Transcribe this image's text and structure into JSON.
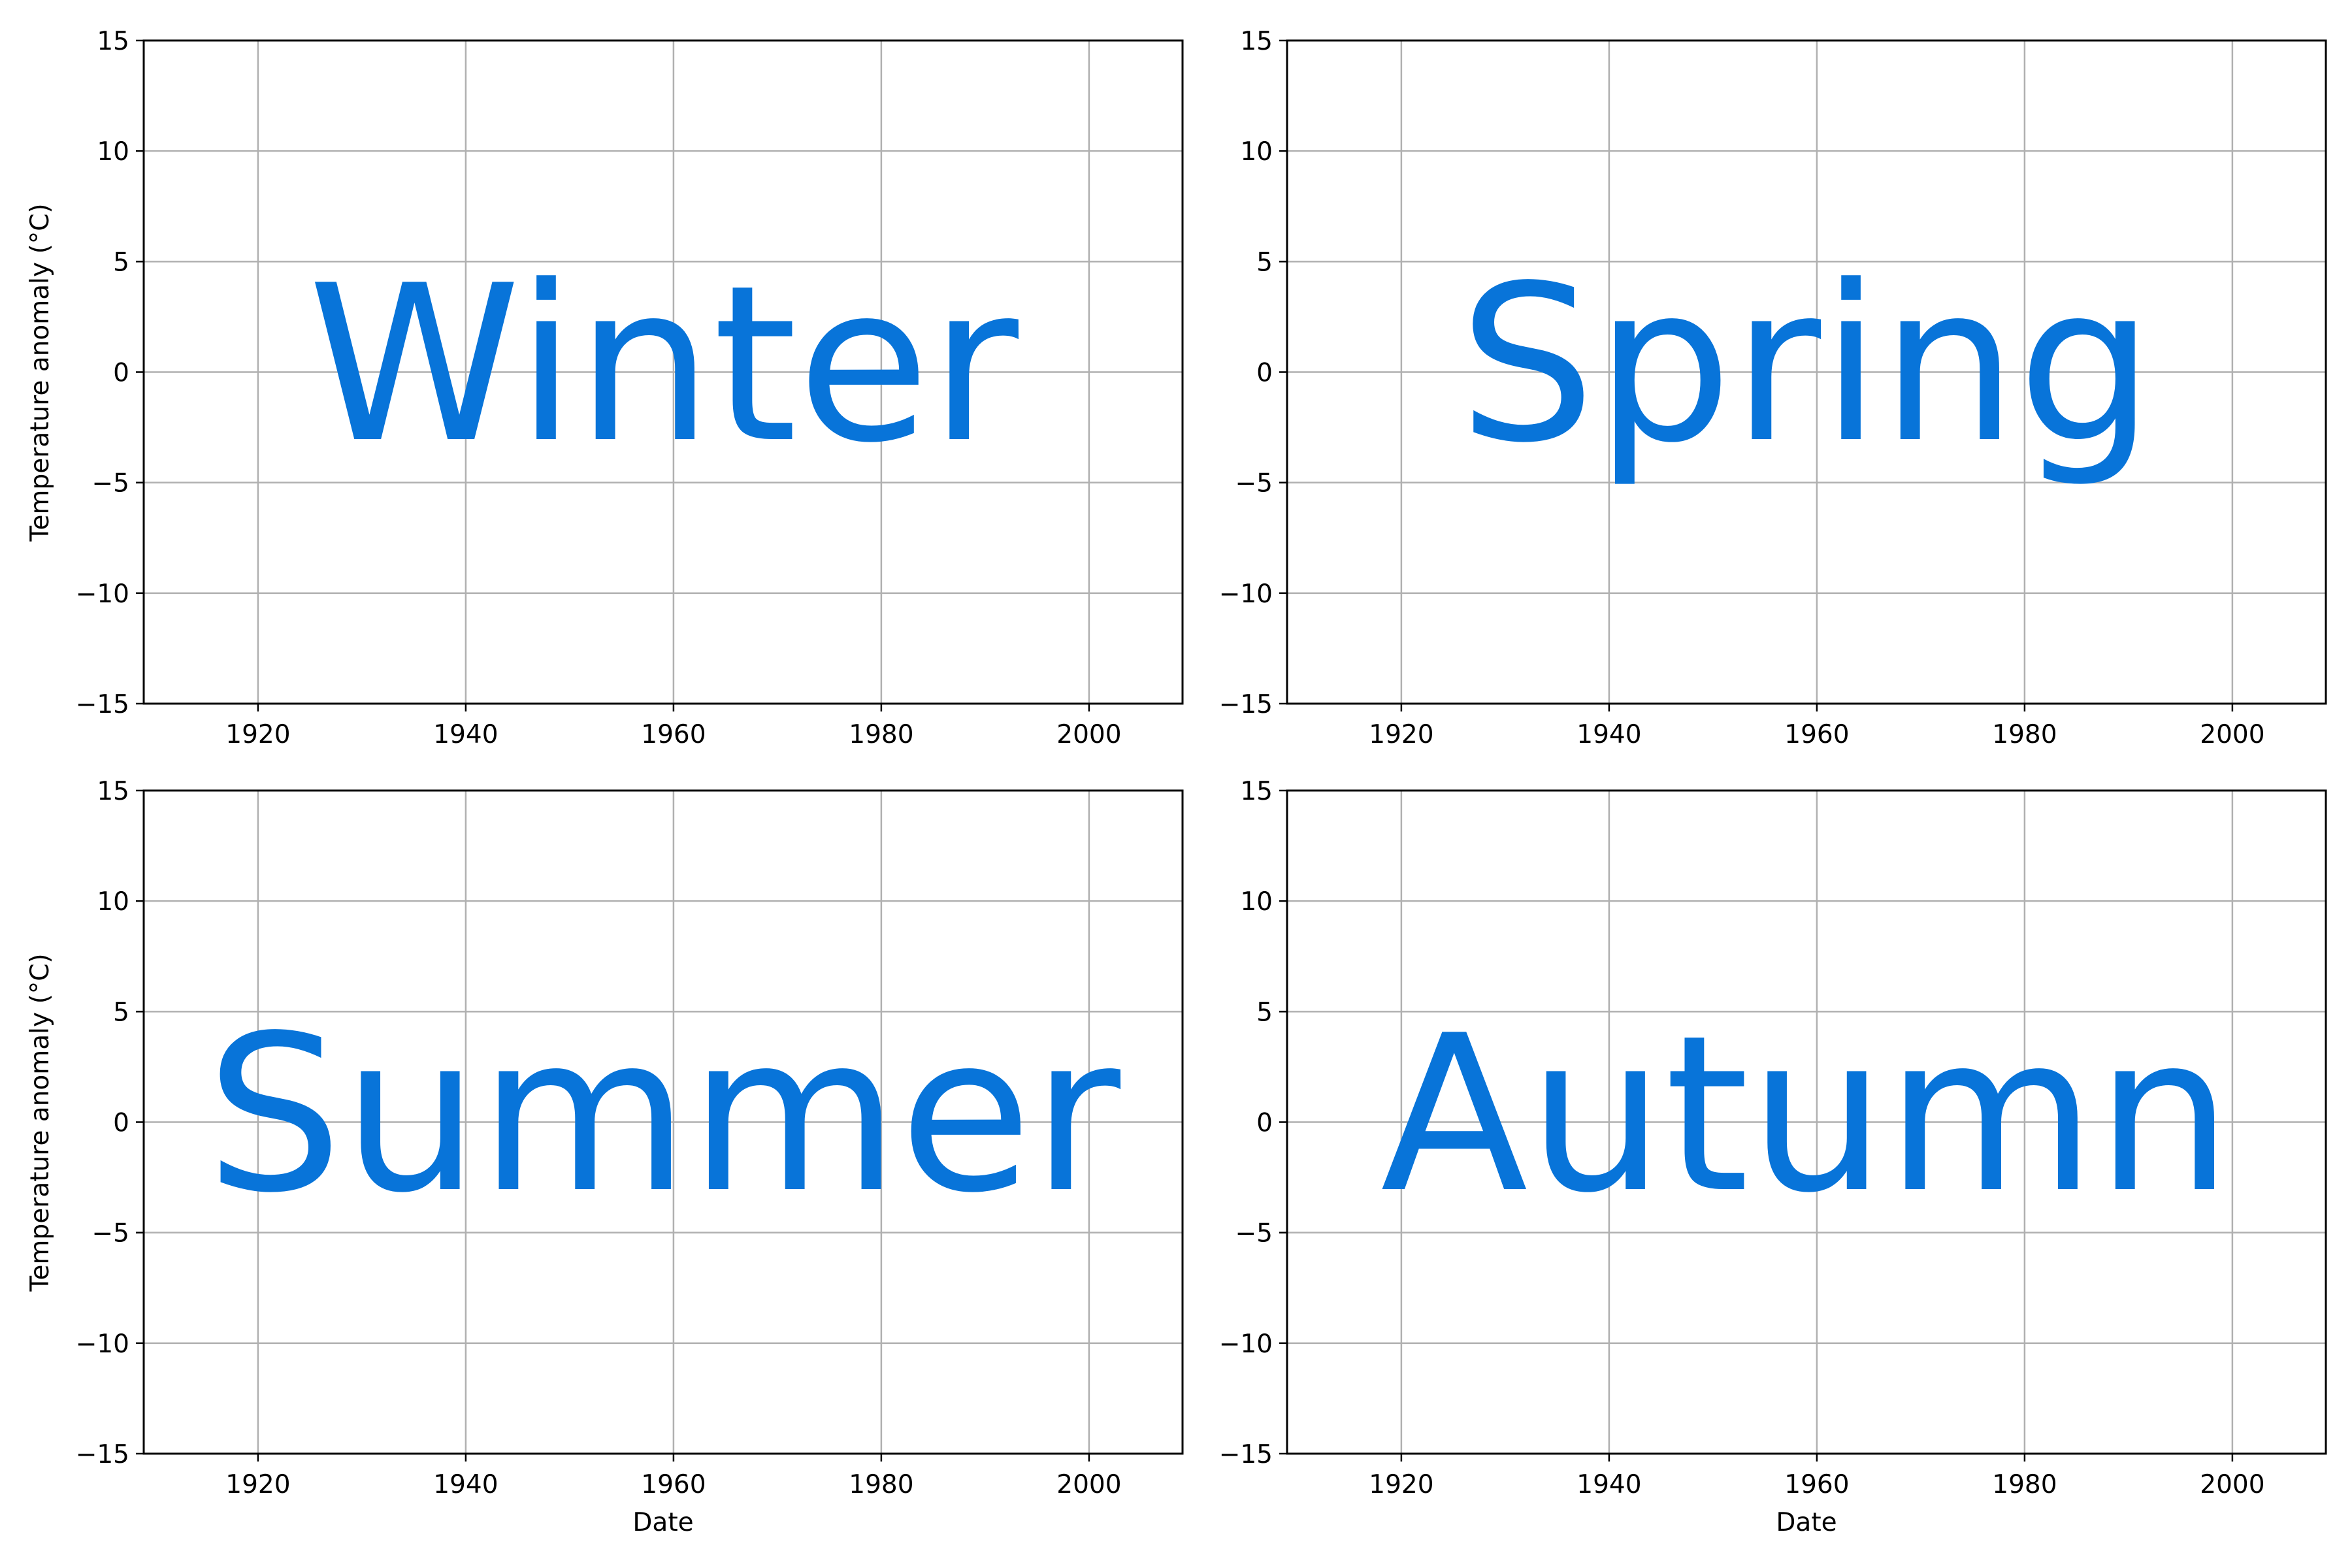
{
  "colors": {
    "season_text": "#0874d9",
    "grid": "#b0b0b0",
    "axes": "#000000",
    "background": "#ffffff"
  },
  "chart_data": [
    {
      "type": "line",
      "panel": "top-left",
      "annotation": "Winter",
      "xlabel": "",
      "ylabel": "Temperature anomaly (°C)",
      "xlim": [
        1909,
        2009
      ],
      "ylim": [
        -15,
        15
      ],
      "xticks": [
        1920,
        1940,
        1960,
        1980,
        2000
      ],
      "yticks": [
        -15,
        -10,
        -5,
        0,
        5,
        10,
        15
      ],
      "xtick_labels": [
        "1920",
        "1940",
        "1960",
        "1980",
        "2000"
      ],
      "ytick_labels": [
        "−15",
        "−10",
        "−5",
        "0",
        "5",
        "10",
        "15"
      ],
      "grid": true,
      "series": []
    },
    {
      "type": "line",
      "panel": "top-right",
      "annotation": "Spring",
      "xlabel": "",
      "ylabel": "",
      "xlim": [
        1909,
        2009
      ],
      "ylim": [
        -15,
        15
      ],
      "xticks": [
        1920,
        1940,
        1960,
        1980,
        2000
      ],
      "yticks": [
        -15,
        -10,
        -5,
        0,
        5,
        10,
        15
      ],
      "xtick_labels": [
        "1920",
        "1940",
        "1960",
        "1980",
        "2000"
      ],
      "ytick_labels": [
        "−15",
        "−10",
        "−5",
        "0",
        "5",
        "10",
        "15"
      ],
      "grid": true,
      "series": []
    },
    {
      "type": "line",
      "panel": "bottom-left",
      "annotation": "Summer",
      "xlabel": "Date",
      "ylabel": "Temperature anomaly (°C)",
      "xlim": [
        1909,
        2009
      ],
      "ylim": [
        -15,
        15
      ],
      "xticks": [
        1920,
        1940,
        1960,
        1980,
        2000
      ],
      "yticks": [
        -15,
        -10,
        -5,
        0,
        5,
        10,
        15
      ],
      "xtick_labels": [
        "1920",
        "1940",
        "1960",
        "1980",
        "2000"
      ],
      "ytick_labels": [
        "−15",
        "−10",
        "−5",
        "0",
        "5",
        "10",
        "15"
      ],
      "grid": true,
      "series": []
    },
    {
      "type": "line",
      "panel": "bottom-right",
      "annotation": "Autumn",
      "xlabel": "Date",
      "ylabel": "",
      "xlim": [
        1909,
        2009
      ],
      "ylim": [
        -15,
        15
      ],
      "xticks": [
        1920,
        1940,
        1960,
        1980,
        2000
      ],
      "yticks": [
        -15,
        -10,
        -5,
        0,
        5,
        10,
        15
      ],
      "xtick_labels": [
        "1920",
        "1940",
        "1960",
        "1980",
        "2000"
      ],
      "ytick_labels": [
        "−15",
        "−10",
        "−5",
        "0",
        "5",
        "10",
        "15"
      ],
      "grid": true,
      "series": []
    }
  ]
}
